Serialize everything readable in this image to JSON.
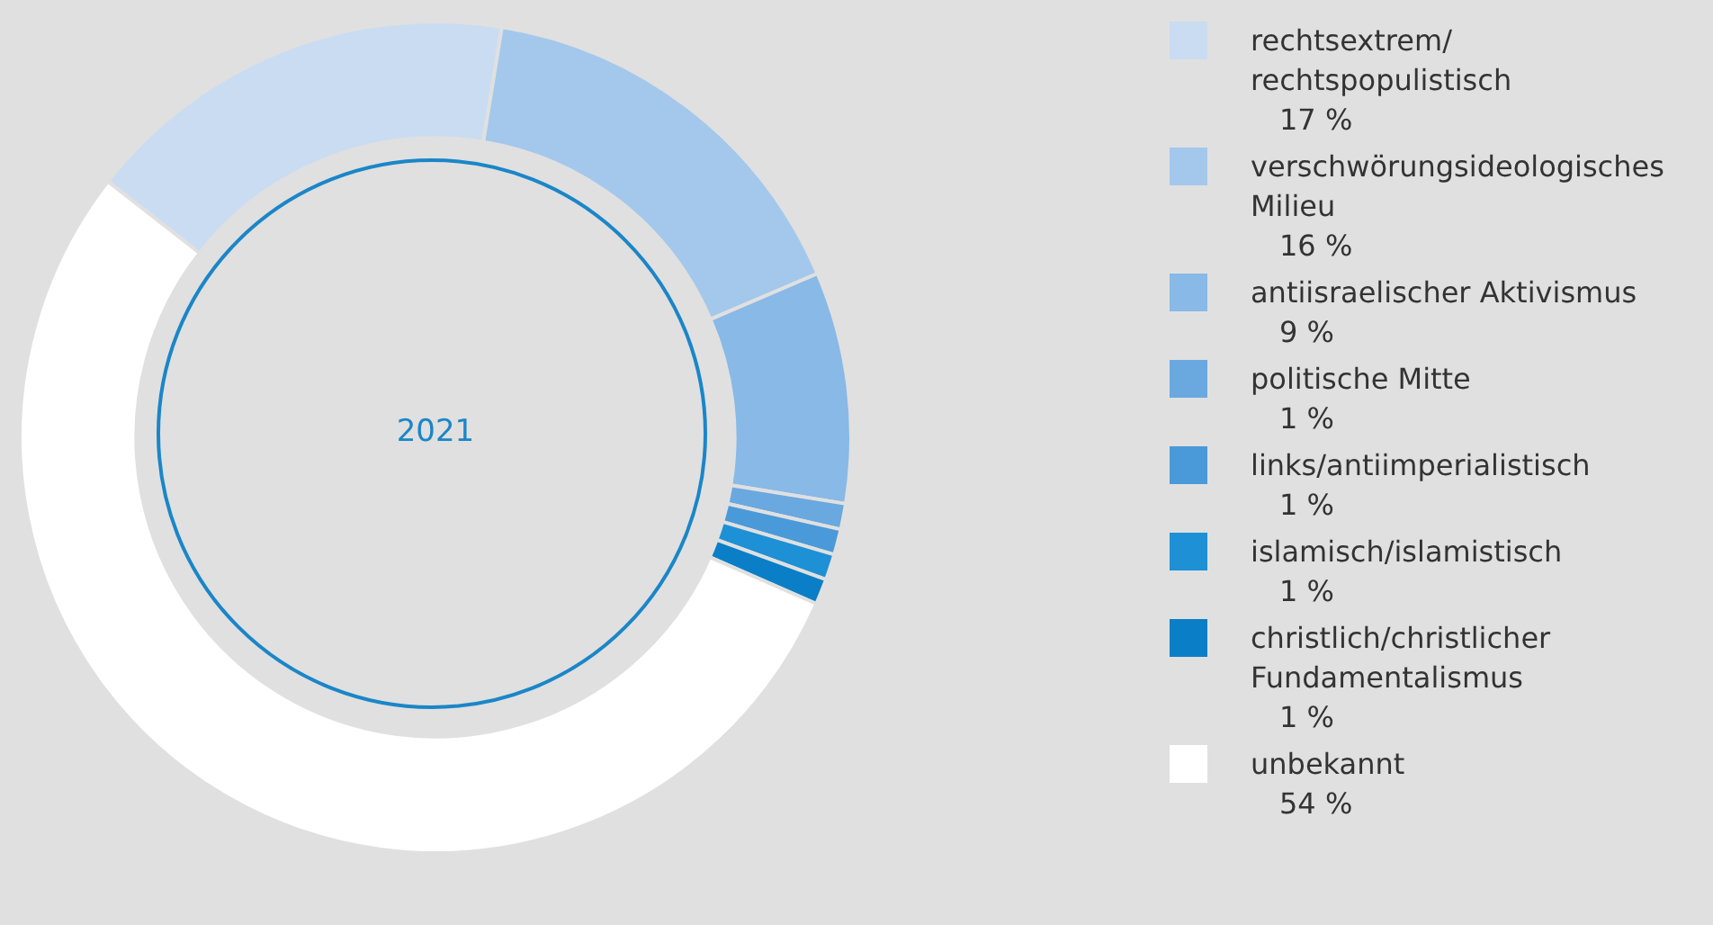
{
  "chart_data": {
    "type": "donut",
    "title": "2021",
    "categories": [
      "rechtsextrem/\nrechtspopulistisch",
      "verschwörungsideologisches Milieu",
      "antiisraelischer Aktivismus",
      "politische Mitte",
      "links/antiimperialistisch",
      "islamisch/islamistisch",
      "christlich/christlicher Fundamentalismus",
      "unbekannt"
    ],
    "values": [
      17,
      16,
      9,
      1,
      1,
      1,
      1,
      54
    ],
    "value_labels": [
      "17 %",
      "16 %",
      "9 %",
      "1 %",
      "1 %",
      "1 %",
      "1 %",
      "54 %"
    ],
    "colors": [
      "#c9dcf2",
      "#a3c8ec",
      "#88b9e7",
      "#6aa8e0",
      "#4a9ad9",
      "#1e90d5",
      "#0a7fc7",
      "#ffffff"
    ],
    "legend": "right"
  }
}
